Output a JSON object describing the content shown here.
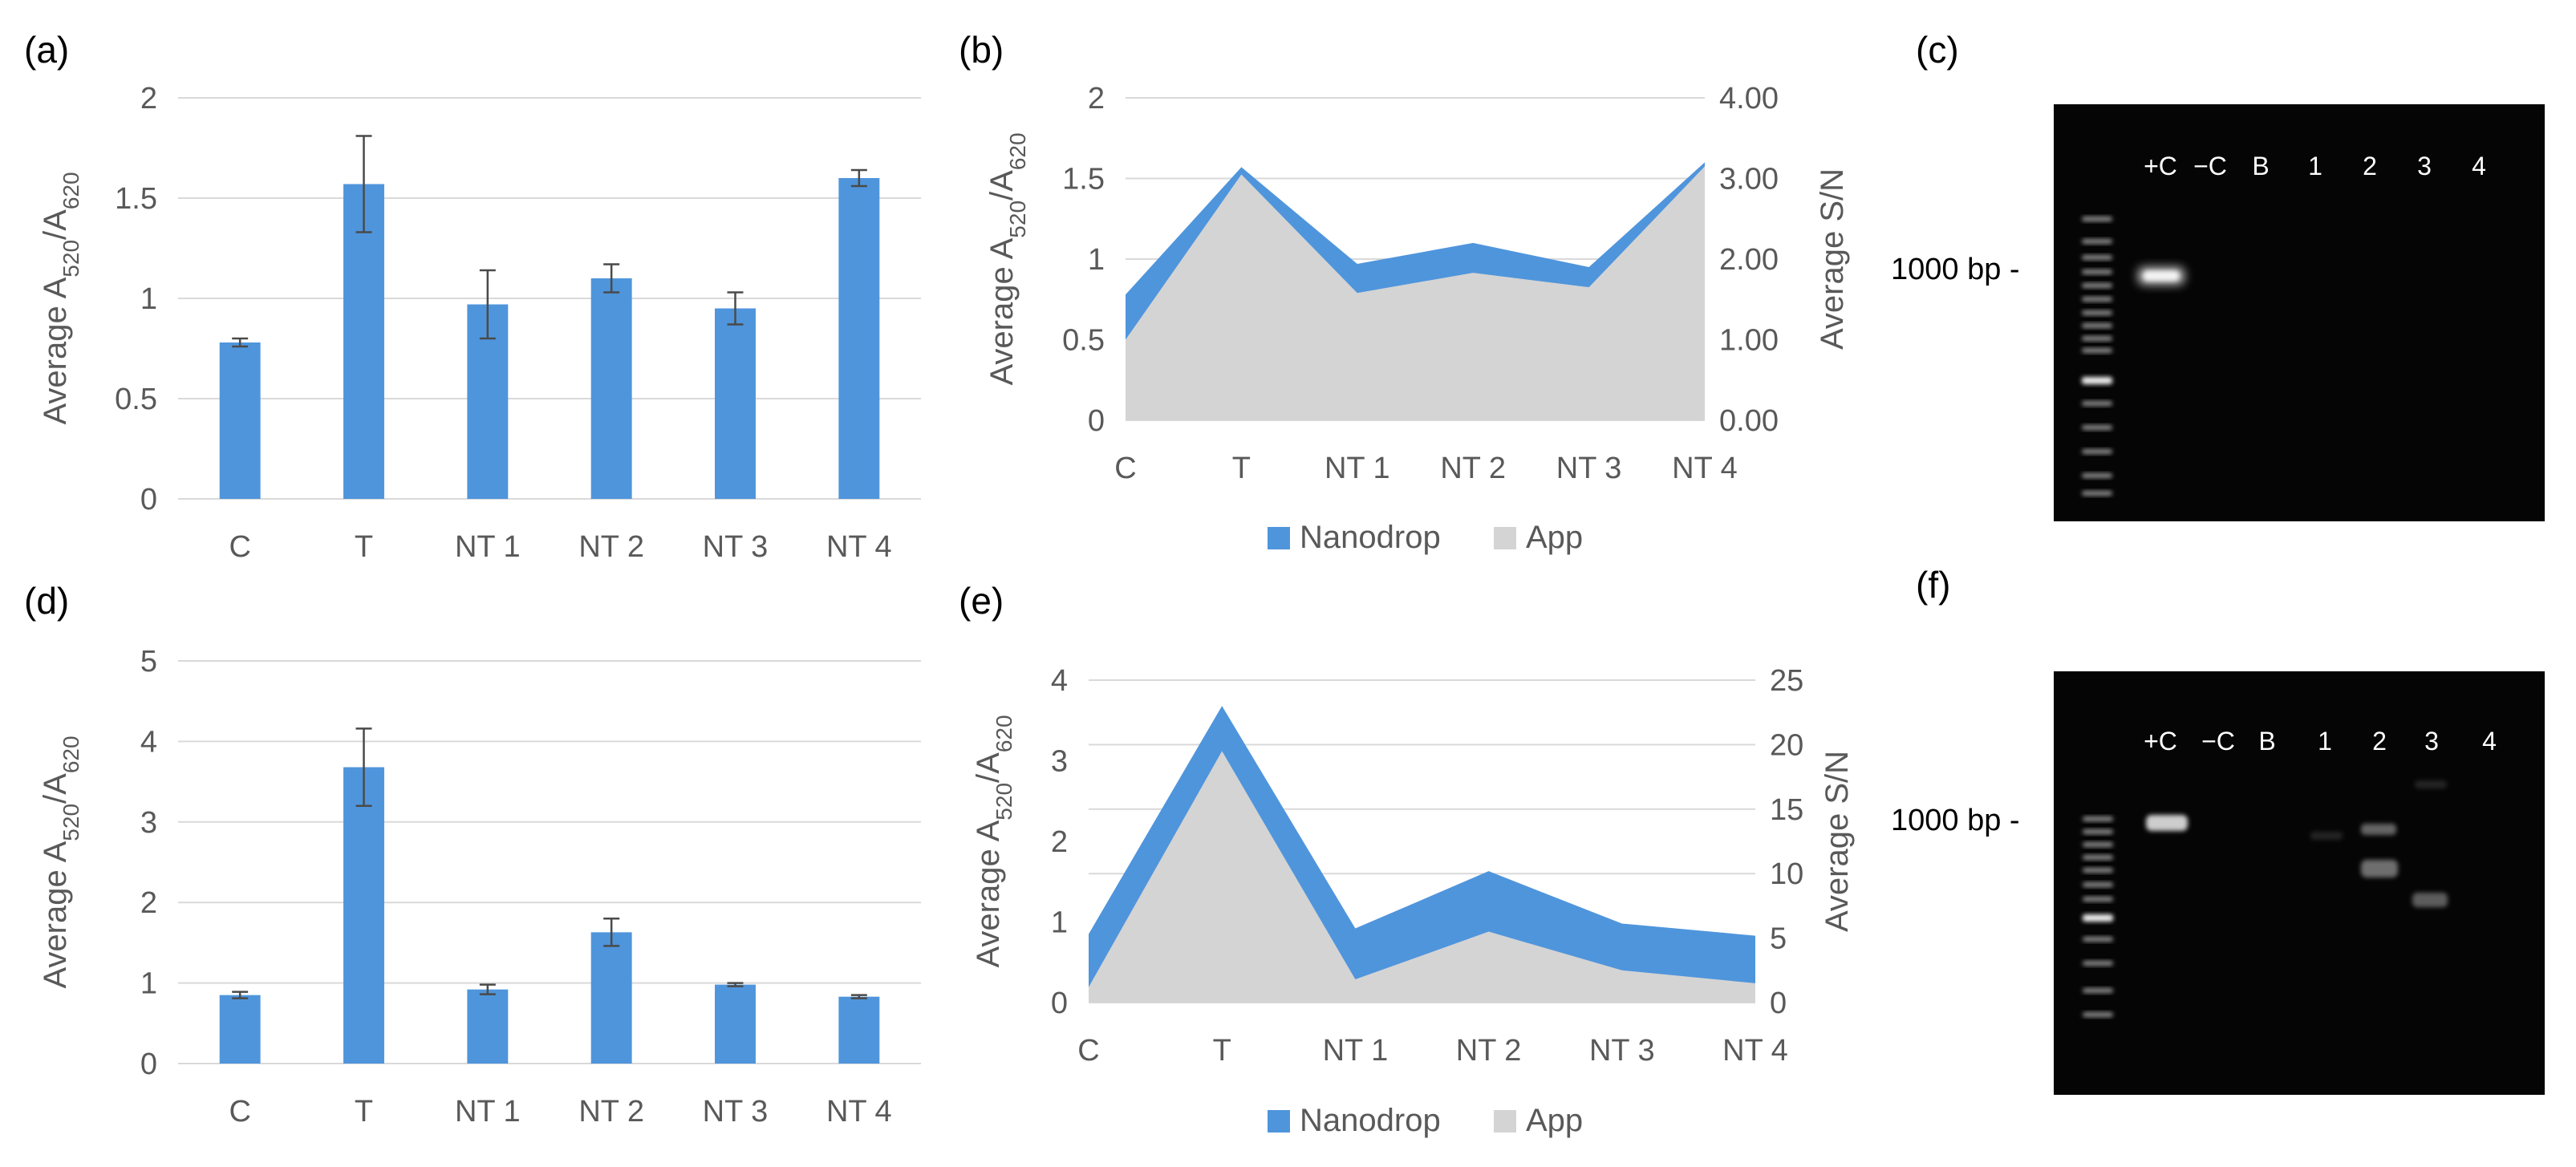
{
  "colors": {
    "bar": "#4f95dc",
    "nanodrop": "#4f95dc",
    "app": "#d4d4d4",
    "grid": "#d9d9d9",
    "axis_text": "#595959",
    "gel_bg": "#050505",
    "band": "#ffffff"
  },
  "chart_data": [
    {
      "panel": "(a)",
      "type": "bar",
      "categories": [
        "C",
        "T",
        "NT 1",
        "NT 2",
        "NT 3",
        "NT 4"
      ],
      "values": [
        0.78,
        1.57,
        0.97,
        1.1,
        0.95,
        1.6
      ],
      "errors": [
        0.02,
        0.24,
        0.17,
        0.07,
        0.08,
        0.04
      ],
      "ylabel": "Average A520/A620",
      "ylim": [
        0,
        2
      ],
      "yticks": [
        "0",
        "0.5",
        "1",
        "1.5",
        "2"
      ],
      "grid": true
    },
    {
      "panel": "(b)",
      "type": "area",
      "categories": [
        "C",
        "T",
        "NT 1",
        "NT 2",
        "NT 3",
        "NT 4"
      ],
      "series": [
        {
          "name": "Nanodrop",
          "axis": "left",
          "values": [
            0.78,
            1.57,
            0.97,
            1.1,
            0.95,
            1.6
          ]
        },
        {
          "name": "App",
          "axis": "right",
          "values": [
            1.0,
            3.05,
            1.58,
            1.83,
            1.65,
            3.15
          ]
        }
      ],
      "ylabel": "Average A520/A620",
      "y2label": "Average S/N",
      "ylim": [
        0,
        2
      ],
      "y2lim": [
        0,
        4
      ],
      "yticks": [
        "0",
        "0.5",
        "1",
        "1.5",
        "2"
      ],
      "y2ticks": [
        "0.00",
        "1.00",
        "2.00",
        "3.00",
        "4.00"
      ],
      "legend": "bottom"
    },
    {
      "panel": "(d)",
      "type": "bar",
      "categories": [
        "C",
        "T",
        "NT 1",
        "NT 2",
        "NT 3",
        "NT 4"
      ],
      "values": [
        0.85,
        3.68,
        0.92,
        1.63,
        0.98,
        0.83
      ],
      "errors": [
        0.04,
        0.48,
        0.06,
        0.17,
        0.02,
        0.02
      ],
      "ylabel": "Average A520/A620",
      "ylim": [
        0,
        5
      ],
      "yticks": [
        "0",
        "1",
        "2",
        "3",
        "4",
        "5"
      ],
      "grid": true
    },
    {
      "panel": "(e)",
      "type": "area",
      "categories": [
        "C",
        "T",
        "NT 1",
        "NT 2",
        "NT 3",
        "NT 4"
      ],
      "series": [
        {
          "name": "Nanodrop",
          "axis": "left",
          "values": [
            0.85,
            3.68,
            0.92,
            1.63,
            0.98,
            0.83
          ]
        },
        {
          "name": "App",
          "axis": "right",
          "values": [
            1.2,
            19.5,
            1.8,
            5.5,
            2.5,
            1.5
          ]
        }
      ],
      "ylabel": "Average A520/A620",
      "y2label": "Average S/N",
      "ylim": [
        0,
        4
      ],
      "y2lim": [
        0,
        25
      ],
      "yticks": [
        "0",
        "1",
        "2",
        "3",
        "4"
      ],
      "y2ticks": [
        "0",
        "5",
        "10",
        "15",
        "20",
        "25"
      ],
      "legend": "bottom"
    }
  ],
  "panels": {
    "a": "(a)",
    "b": "(b)",
    "c": "(c)",
    "d": "(d)",
    "e": "(e)",
    "f": "(f)"
  },
  "ylabel_text": {
    "prefix": "Average A",
    "sub1": "520",
    "slash": "/A",
    "sub2": "620"
  },
  "y2label_text": "Average S/N",
  "legend": {
    "nanodrop": "Nanodrop",
    "app": "App"
  },
  "gels": {
    "lanes": [
      "+C",
      "−C",
      "B",
      "1",
      "2",
      "3",
      "4"
    ],
    "marker_label": "1000 bp -"
  }
}
